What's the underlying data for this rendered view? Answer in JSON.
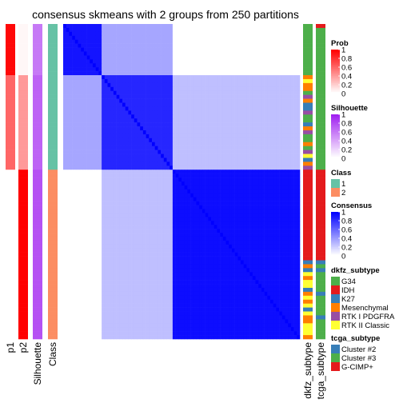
{
  "chart_data": {
    "type": "heatmap",
    "title": "consensus skmeans with 2 groups from 250 partitions",
    "annotation_columns_left": [
      "p1",
      "p2",
      "Silhouette",
      "Class"
    ],
    "annotation_columns_right": [
      "dkfz_subtype",
      "tcga_subtype"
    ],
    "legends": [
      {
        "title": "Prob",
        "kind": "gradient",
        "ticks": [
          "1",
          "0.8",
          "0.6",
          "0.4",
          "0.2",
          "0"
        ],
        "colors": [
          "#ff0000",
          "#ffffff"
        ]
      },
      {
        "title": "Silhouette",
        "kind": "gradient",
        "ticks": [
          "1",
          "0.8",
          "0.6",
          "0.4",
          "0.2",
          "0"
        ],
        "colors": [
          "#a020f0",
          "#ffffff"
        ]
      },
      {
        "title": "Class",
        "kind": "discrete",
        "items": [
          {
            "label": "1",
            "color": "#66c2a5"
          },
          {
            "label": "2",
            "color": "#fc8d62"
          }
        ]
      },
      {
        "title": "Consensus",
        "kind": "gradient",
        "ticks": [
          "1",
          "0.8",
          "0.6",
          "0.4",
          "0.2",
          "0"
        ],
        "colors": [
          "#0000ff",
          "#ffffff"
        ]
      },
      {
        "title": "dkfz_subtype",
        "kind": "discrete",
        "items": [
          {
            "label": "G34",
            "color": "#4daf4a"
          },
          {
            "label": "IDH",
            "color": "#e41a1c"
          },
          {
            "label": "K27",
            "color": "#377eb8"
          },
          {
            "label": "Mesenchymal",
            "color": "#ff7f00"
          },
          {
            "label": "RTK I PDGFRA",
            "color": "#984ea3"
          },
          {
            "label": "RTK II Classic",
            "color": "#ffff33"
          }
        ]
      },
      {
        "title": "tcga_subtype",
        "kind": "discrete",
        "items": [
          {
            "label": "Cluster #2",
            "color": "#377eb8"
          },
          {
            "label": "Cluster #3",
            "color": "#4daf4a"
          },
          {
            "label": "G-CIMP+",
            "color": "#e41a1c"
          }
        ]
      }
    ],
    "consensus_blocks": [
      {
        "group": "1",
        "size": 0.46,
        "within": 0.92,
        "cross": 0.25
      },
      {
        "group": "2",
        "size": 0.54,
        "within": 0.95,
        "cross": 0.25
      }
    ]
  }
}
